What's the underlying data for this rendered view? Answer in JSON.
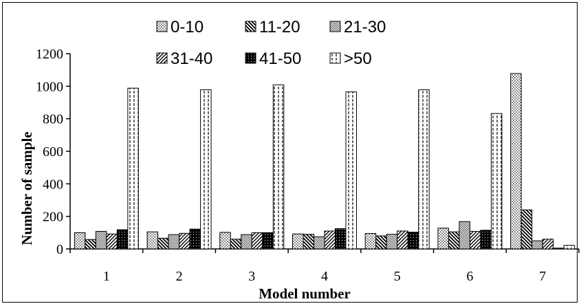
{
  "chart_data": {
    "type": "bar",
    "categories": [
      "1",
      "2",
      "3",
      "4",
      "5",
      "6",
      "7"
    ],
    "series": [
      {
        "name": "0-10",
        "pattern": "dots",
        "values": [
          100,
          105,
          102,
          92,
          95,
          128,
          1078
        ]
      },
      {
        "name": "11-20",
        "pattern": "diag-back",
        "values": [
          58,
          66,
          60,
          90,
          80,
          105,
          240
        ]
      },
      {
        "name": "21-30",
        "pattern": "fine-grid",
        "values": [
          108,
          88,
          88,
          75,
          90,
          168,
          50
        ]
      },
      {
        "name": "31-40",
        "pattern": "diag-fwd",
        "values": [
          92,
          96,
          100,
          110,
          110,
          108,
          60
        ]
      },
      {
        "name": "41-50",
        "pattern": "dark",
        "values": [
          118,
          122,
          100,
          125,
          103,
          115,
          5
        ]
      },
      {
        "name": ">50",
        "pattern": "dashed",
        "values": [
          988,
          978,
          1008,
          965,
          978,
          832,
          22
        ]
      }
    ],
    "xlabel": "Model number",
    "ylabel": "Number of sample",
    "ylim": [
      0,
      1200
    ],
    "yticks": [
      "0",
      "200",
      "400",
      "600",
      "800",
      "1000",
      "1200"
    ],
    "legend": "top-center"
  }
}
